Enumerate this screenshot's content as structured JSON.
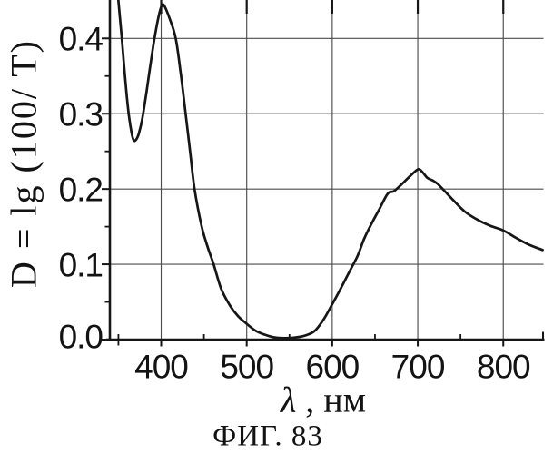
{
  "figure": {
    "caption": "ФИГ. 83",
    "colors": {
      "ink": "#161616",
      "grid": "#4d4d4d",
      "background": "#ffffff"
    }
  },
  "chart_data": {
    "type": "line",
    "title": "",
    "xlabel": "λ , нм",
    "xlabel_symbol": "λ",
    "xlabel_rest": " , нм",
    "ylabel": "D = lg (100/ T)",
    "xlim": [
      340,
      847
    ],
    "ylim": [
      0,
      0.451
    ],
    "grid": true,
    "legend_position": "none",
    "x_ticks_major": [
      400,
      500,
      600,
      700,
      800
    ],
    "x_tick_labels": [
      "400",
      "500",
      "600",
      "700",
      "800"
    ],
    "x_ticks_minor": [
      350,
      450,
      550,
      650,
      750
    ],
    "y_ticks_major": [
      0.0,
      0.1,
      0.2,
      0.3,
      0.4
    ],
    "y_tick_labels": [
      "0.0",
      "0.1",
      "0.2",
      "0.3",
      "0.4"
    ],
    "y_ticks_minor": [
      0.05,
      0.15,
      0.25,
      0.35
    ],
    "series": [
      {
        "name": "absorbance-spectrum",
        "points": [
          [
            345,
            0.52
          ],
          [
            350,
            0.45
          ],
          [
            354,
            0.4
          ],
          [
            358,
            0.345
          ],
          [
            362,
            0.3
          ],
          [
            365.5,
            0.274
          ],
          [
            368,
            0.2645
          ],
          [
            371,
            0.266
          ],
          [
            374,
            0.274
          ],
          [
            378,
            0.294
          ],
          [
            383,
            0.33
          ],
          [
            387,
            0.362
          ],
          [
            391,
            0.392
          ],
          [
            395,
            0.418
          ],
          [
            398,
            0.434
          ],
          [
            401,
            0.4445
          ],
          [
            404,
            0.4425
          ],
          [
            410,
            0.426
          ],
          [
            417,
            0.4
          ],
          [
            423,
            0.352
          ],
          [
            429,
            0.296
          ],
          [
            434,
            0.248
          ],
          [
            439,
            0.2
          ],
          [
            447,
            0.152
          ],
          [
            454,
            0.124
          ],
          [
            461,
            0.101
          ],
          [
            470,
            0.068
          ],
          [
            480,
            0.046
          ],
          [
            490,
            0.031
          ],
          [
            500,
            0.021
          ],
          [
            510,
            0.012
          ],
          [
            520,
            0.007
          ],
          [
            532,
            0.003
          ],
          [
            545,
            0.002
          ],
          [
            558,
            0.003
          ],
          [
            570,
            0.006
          ],
          [
            580,
            0.012
          ],
          [
            590,
            0.027
          ],
          [
            600,
            0.047
          ],
          [
            610,
            0.068
          ],
          [
            620,
            0.09
          ],
          [
            630,
            0.112
          ],
          [
            637,
            0.133
          ],
          [
            645,
            0.152
          ],
          [
            655,
            0.173
          ],
          [
            665,
            0.194
          ],
          [
            672,
            0.197
          ],
          [
            680,
            0.205
          ],
          [
            690,
            0.216
          ],
          [
            700,
            0.226
          ],
          [
            705,
            0.223
          ],
          [
            711,
            0.215
          ],
          [
            718,
            0.211
          ],
          [
            723,
            0.207
          ],
          [
            730,
            0.199
          ],
          [
            740,
            0.187
          ],
          [
            755,
            0.17
          ],
          [
            770,
            0.159
          ],
          [
            785,
            0.151
          ],
          [
            800,
            0.145
          ],
          [
            815,
            0.135
          ],
          [
            830,
            0.126
          ],
          [
            846,
            0.119
          ]
        ]
      }
    ]
  }
}
